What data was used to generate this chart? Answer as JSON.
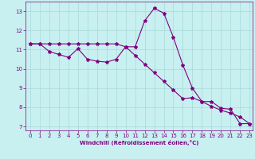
{
  "title": "",
  "xlabel": "Windchill (Refroidissement éolien,°C)",
  "background_color": "#c8f0f0",
  "line_color": "#800080",
  "grid_color": "#a8d8d8",
  "xlim": [
    -0.5,
    23.3
  ],
  "ylim": [
    6.8,
    13.5
  ],
  "yticks": [
    7,
    8,
    9,
    10,
    11,
    12,
    13
  ],
  "xticks": [
    0,
    1,
    2,
    3,
    4,
    5,
    6,
    7,
    8,
    9,
    10,
    11,
    12,
    13,
    14,
    15,
    16,
    17,
    18,
    19,
    20,
    21,
    22,
    23
  ],
  "series1_x": [
    0,
    1,
    2,
    3,
    4,
    5,
    6,
    7,
    8,
    9,
    10,
    11,
    12,
    13,
    14,
    15,
    16,
    17,
    18,
    19,
    20,
    21,
    22,
    23
  ],
  "series1_y": [
    11.3,
    11.3,
    10.9,
    10.75,
    10.6,
    11.05,
    10.5,
    10.4,
    10.35,
    10.5,
    11.15,
    11.15,
    12.5,
    13.15,
    12.9,
    11.65,
    10.2,
    9.0,
    8.3,
    8.3,
    7.95,
    7.9,
    7.15,
    7.15
  ],
  "series2_x": [
    0,
    1,
    2,
    3,
    4,
    5,
    6,
    7,
    8,
    9,
    10,
    11,
    12,
    13,
    14,
    15,
    16,
    17,
    18,
    19,
    20,
    21,
    22,
    23
  ],
  "series2_y": [
    11.3,
    11.3,
    11.3,
    11.3,
    11.3,
    11.3,
    11.3,
    11.3,
    11.3,
    11.3,
    11.15,
    10.7,
    10.25,
    9.8,
    9.35,
    8.9,
    8.45,
    8.5,
    8.3,
    8.05,
    7.85,
    7.7,
    7.5,
    7.15
  ],
  "xlabel_fontsize": 5.0,
  "tick_fontsize": 5.0,
  "marker_size": 3.0,
  "line_width": 0.8
}
